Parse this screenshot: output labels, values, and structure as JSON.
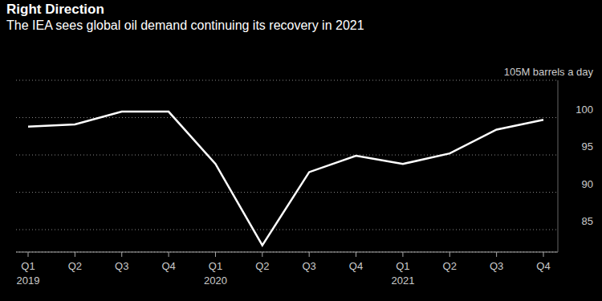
{
  "chart_data": {
    "type": "line",
    "title": "Right Direction",
    "subtitle": "The IEA sees global oil demand continuing its recovery in 2021",
    "categories": [
      "Q1",
      "Q2",
      "Q3",
      "Q4",
      "Q1",
      "Q2",
      "Q3",
      "Q4",
      "Q1",
      "Q2",
      "Q3",
      "Q4"
    ],
    "x_groups": [
      "2019",
      null,
      null,
      null,
      "2020",
      null,
      null,
      null,
      "2021",
      null,
      null,
      null
    ],
    "values": [
      98.8,
      99.1,
      100.8,
      100.8,
      93.8,
      82.9,
      92.7,
      94.9,
      93.8,
      95.2,
      98.4,
      99.7
    ],
    "color": "#ffffff",
    "marker": "none",
    "line_style": "solid",
    "ylim": [
      82,
      105
    ],
    "yticks": [
      85,
      90,
      95,
      100,
      {
        "value": 105,
        "label": "105M barrels a day"
      }
    ],
    "grid": true
  }
}
